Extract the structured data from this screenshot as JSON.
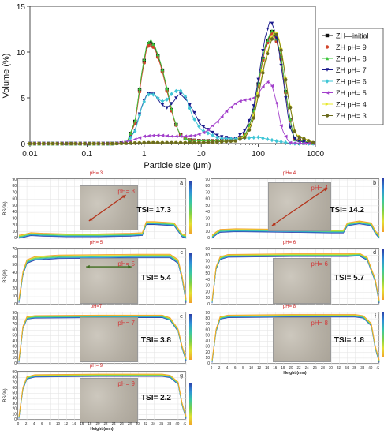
{
  "chart_data": [
    {
      "type": "line",
      "xlabel": "Particle size (μm)",
      "ylabel": "Volume (%)",
      "xscale": "log",
      "xlim": [
        0.01,
        1000
      ],
      "ylim": [
        0,
        15
      ],
      "xticks": [
        "0.01",
        "0.1",
        "1",
        "10",
        "100",
        "1000"
      ],
      "yticks": [
        "0",
        "5",
        "10",
        "15"
      ],
      "legend_position": "right",
      "series": [
        {
          "name": "ZH—initial",
          "color": "#111111",
          "marker": "square",
          "x": [
            0.01,
            0.3,
            0.5,
            0.7,
            0.9,
            1.1,
            1.3,
            1.6,
            2.0,
            2.5,
            3.2,
            4.2,
            6,
            10,
            20,
            40,
            60,
            80,
            100,
            130,
            170,
            200,
            250,
            320,
            420,
            1000
          ],
          "y": [
            0,
            0,
            0.1,
            2.5,
            7.5,
            10.5,
            11.3,
            10.3,
            8.5,
            6.0,
            3.0,
            1.0,
            0.4,
            0.3,
            0.3,
            0.4,
            1.0,
            3.0,
            6.5,
            10.5,
            12.3,
            11.8,
            9.5,
            4.5,
            0.5,
            0
          ]
        },
        {
          "name": "ZH pH= 9",
          "color": "#d2452b",
          "marker": "circle",
          "x": [
            0.01,
            0.3,
            0.5,
            0.7,
            0.9,
            1.1,
            1.3,
            1.6,
            2.0,
            2.5,
            3.2,
            4.2,
            6,
            10,
            20,
            40,
            60,
            80,
            100,
            130,
            170,
            200,
            250,
            320,
            420,
            1000
          ],
          "y": [
            0,
            0,
            0.1,
            2.3,
            7.2,
            10.3,
            11.0,
            10.1,
            8.3,
            5.8,
            2.9,
            1.0,
            0.4,
            0.3,
            0.3,
            0.4,
            1.0,
            2.9,
            6.3,
            10.3,
            12.1,
            11.6,
            9.3,
            4.4,
            0.5,
            0
          ]
        },
        {
          "name": "ZH pH= 8",
          "color": "#3ec63e",
          "marker": "triangle-up",
          "x": [
            0.01,
            0.3,
            0.5,
            0.7,
            0.9,
            1.1,
            1.3,
            1.6,
            2.0,
            2.5,
            3.2,
            4.2,
            6,
            10,
            20,
            40,
            60,
            80,
            100,
            130,
            170,
            200,
            250,
            320,
            420,
            1000
          ],
          "y": [
            0,
            0,
            0.1,
            2.6,
            7.6,
            10.7,
            11.4,
            10.4,
            8.6,
            6.1,
            3.1,
            1.0,
            0.4,
            0.3,
            0.3,
            0.4,
            1.0,
            3.0,
            6.6,
            10.6,
            12.4,
            11.9,
            9.6,
            4.6,
            0.5,
            0
          ]
        },
        {
          "name": "ZH pH= 7",
          "color": "#1a1a8c",
          "marker": "triangle-down",
          "x": [
            0.01,
            0.3,
            0.5,
            0.7,
            0.9,
            1.1,
            1.3,
            1.6,
            2.0,
            2.5,
            3.2,
            4.2,
            6,
            10,
            20,
            40,
            60,
            80,
            100,
            130,
            160,
            180,
            220,
            280,
            350,
            450,
            1000
          ],
          "y": [
            0,
            0,
            0.1,
            1.5,
            4.0,
            5.3,
            5.6,
            5.2,
            4.3,
            3.9,
            4.5,
            5.5,
            4.5,
            2.0,
            0.8,
            0.5,
            1.5,
            3.5,
            7.0,
            11.5,
            13.4,
            13.0,
            11.0,
            6.5,
            2.0,
            0.3,
            0
          ]
        },
        {
          "name": "ZH pH= 6",
          "color": "#3fc6d6",
          "marker": "diamond",
          "x": [
            0.01,
            0.3,
            0.5,
            0.7,
            0.9,
            1.1,
            1.3,
            1.6,
            2.0,
            2.5,
            3.2,
            4.2,
            5.5,
            7,
            10,
            20,
            40,
            60,
            100,
            200,
            400,
            1000
          ],
          "y": [
            0,
            0,
            0.1,
            1.4,
            3.9,
            5.2,
            5.5,
            5.2,
            4.6,
            4.8,
            5.6,
            5.9,
            5.0,
            3.0,
            1.5,
            0.6,
            0.5,
            0.6,
            0.7,
            0.3,
            0,
            0
          ]
        },
        {
          "name": "ZH pH= 5",
          "color": "#a23fcb",
          "marker": "triangle-left",
          "x": [
            0.01,
            0.3,
            0.5,
            0.8,
            1.0,
            1.5,
            2.0,
            3.0,
            5.0,
            8,
            12,
            20,
            30,
            45,
            60,
            80,
            100,
            130,
            150,
            170,
            200,
            260,
            350,
            1000
          ],
          "y": [
            0,
            0,
            0.2,
            0.6,
            0.8,
            0.9,
            0.9,
            0.8,
            0.8,
            0.9,
            1.3,
            2.5,
            3.8,
            4.6,
            4.8,
            4.9,
            5.5,
            6.5,
            6.8,
            6.5,
            5.0,
            1.5,
            0.1,
            0
          ]
        },
        {
          "name": "ZH pH= 4",
          "color": "#e8e82a",
          "marker": "triangle-right",
          "x": [
            0.01,
            0.3,
            1,
            3,
            10,
            20,
            40,
            60,
            80,
            100,
            130,
            160,
            190,
            220,
            260,
            330,
            450,
            1000
          ],
          "y": [
            0,
            0,
            0.1,
            0.1,
            0.1,
            0.2,
            0.3,
            0.8,
            2.5,
            5.5,
            9.0,
            11.0,
            12.3,
            12.0,
            10.0,
            5.5,
            1.0,
            0
          ]
        },
        {
          "name": "ZH pH= 3",
          "color": "#6b6b1e",
          "marker": "circle",
          "x": [
            0.01,
            0.3,
            1,
            3,
            10,
            20,
            40,
            60,
            80,
            100,
            130,
            160,
            190,
            220,
            260,
            330,
            450,
            1000
          ],
          "y": [
            0,
            0,
            0.1,
            0.1,
            0.1,
            0.2,
            0.3,
            0.7,
            2.3,
            5.2,
            8.8,
            10.8,
            12.1,
            11.8,
            9.8,
            5.3,
            0.9,
            0
          ]
        }
      ]
    },
    {
      "type": "line",
      "panel": "a",
      "ph_title": "pH= 3",
      "photo_label": "pH= 3",
      "tsi": "TSI= 17.3",
      "ylabel": "BS(%)",
      "xlabel": "",
      "ylim": [
        0,
        90
      ],
      "xlim": [
        0,
        42
      ],
      "yticks": [
        "0",
        "10",
        "20",
        "30",
        "40",
        "50",
        "60",
        "70",
        "80",
        "90"
      ],
      "xticks": [],
      "profile": [
        [
          0,
          3
        ],
        [
          1,
          4
        ],
        [
          3,
          7
        ],
        [
          6,
          6
        ],
        [
          12,
          5
        ],
        [
          20,
          5
        ],
        [
          28,
          6
        ],
        [
          31,
          7
        ],
        [
          32,
          24
        ],
        [
          34,
          24
        ],
        [
          39,
          22
        ],
        [
          41,
          5
        ],
        [
          42,
          3
        ]
      ]
    },
    {
      "type": "line",
      "panel": "b",
      "ph_title": "pH= 4",
      "photo_label": "pH= 4",
      "tsi": "TSI= 14.2",
      "ylabel": "",
      "xlabel": "",
      "ylim": [
        0,
        90
      ],
      "xlim": [
        0,
        42
      ],
      "yticks": [
        "0",
        "10",
        "20",
        "30",
        "40",
        "50",
        "60",
        "70",
        "80",
        "90"
      ],
      "xticks": [],
      "profile": [
        [
          0,
          3
        ],
        [
          1,
          8
        ],
        [
          2,
          12
        ],
        [
          6,
          13
        ],
        [
          20,
          12
        ],
        [
          30,
          11
        ],
        [
          33,
          11
        ],
        [
          34,
          22
        ],
        [
          37,
          25
        ],
        [
          40,
          22
        ],
        [
          41,
          10
        ],
        [
          42,
          3
        ]
      ]
    },
    {
      "type": "line",
      "panel": "c",
      "ph_title": "pH= 5",
      "photo_label": "pH= 5",
      "tsi": "TSI= 5.4",
      "ylabel": "BS(%)",
      "xlabel": "",
      "ylim": [
        0,
        70
      ],
      "xlim": [
        0,
        42
      ],
      "yticks": [
        "0",
        "10",
        "20",
        "30",
        "40",
        "50",
        "60",
        "70"
      ],
      "xticks": [],
      "profile": [
        [
          0,
          5
        ],
        [
          1,
          40
        ],
        [
          2,
          55
        ],
        [
          4,
          59
        ],
        [
          10,
          61
        ],
        [
          30,
          62
        ],
        [
          38,
          62
        ],
        [
          40,
          55
        ],
        [
          41,
          35
        ],
        [
          42,
          5
        ]
      ]
    },
    {
      "type": "line",
      "panel": "d",
      "ph_title": "pH= 6",
      "photo_label": "pH= 6",
      "tsi": "TSI= 5.7",
      "ylabel": "",
      "xlabel": "",
      "ylim": [
        0,
        90
      ],
      "xlim": [
        0,
        42
      ],
      "yticks": [
        "0",
        "10",
        "20",
        "30",
        "40",
        "50",
        "60",
        "70",
        "80",
        "90"
      ],
      "xticks": [],
      "profile": [
        [
          0,
          5
        ],
        [
          1,
          60
        ],
        [
          2,
          76
        ],
        [
          4,
          80
        ],
        [
          20,
          81
        ],
        [
          34,
          81
        ],
        [
          37,
          82
        ],
        [
          39,
          75
        ],
        [
          41,
          40
        ],
        [
          42,
          5
        ]
      ]
    },
    {
      "type": "line",
      "panel": "e",
      "ph_title": "pH=7",
      "photo_label": "pH= 7",
      "tsi": "TSI= 3.8",
      "ylabel": "",
      "xlabel": "",
      "ylim": [
        0,
        90
      ],
      "xlim": [
        0,
        42
      ],
      "yticks": [
        "0",
        "10",
        "20",
        "30",
        "40",
        "50",
        "60",
        "70",
        "80",
        "90"
      ],
      "xticks": [],
      "profile": [
        [
          0,
          5
        ],
        [
          1,
          65
        ],
        [
          2,
          82
        ],
        [
          4,
          84
        ],
        [
          20,
          85
        ],
        [
          36,
          85
        ],
        [
          38,
          80
        ],
        [
          40,
          60
        ],
        [
          41,
          30
        ],
        [
          42,
          8
        ]
      ]
    },
    {
      "type": "line",
      "panel": "f",
      "ph_title": "pH= 8",
      "photo_label": "pH= 8",
      "tsi": "TSI= 1.8",
      "ylabel": "",
      "xlabel": "Height (mm)",
      "ylim": [
        0,
        90
      ],
      "xlim": [
        0,
        42
      ],
      "yticks": [
        "0",
        "10",
        "20",
        "30",
        "40",
        "50",
        "60",
        "70",
        "80",
        "90"
      ],
      "xticks": [
        "0",
        "2",
        "4",
        "6",
        "8",
        "10",
        "12",
        "14",
        "16",
        "18",
        "20",
        "22",
        "24",
        "26",
        "28",
        "30",
        "32",
        "34",
        "36",
        "38",
        "40",
        "42"
      ],
      "profile": [
        [
          0,
          5
        ],
        [
          1,
          60
        ],
        [
          2,
          82
        ],
        [
          4,
          85
        ],
        [
          20,
          86
        ],
        [
          36,
          86
        ],
        [
          38,
          84
        ],
        [
          40,
          70
        ],
        [
          41,
          30
        ],
        [
          42,
          5
        ]
      ]
    },
    {
      "type": "line",
      "panel": "g",
      "ph_title": "pH= 9",
      "photo_label": "pH= 9",
      "tsi": "TSI= 2.2",
      "ylabel": "BS(%)",
      "xlabel": "Height (mm)",
      "ylim": [
        0,
        90
      ],
      "xlim": [
        0,
        42
      ],
      "yticks": [
        "0",
        "10",
        "20",
        "30",
        "40",
        "50",
        "60",
        "70",
        "80",
        "90"
      ],
      "xticks": [
        "0",
        "2",
        "4",
        "6",
        "8",
        "10",
        "12",
        "14",
        "16",
        "18",
        "20",
        "22",
        "24",
        "26",
        "28",
        "30",
        "32",
        "34",
        "36",
        "38",
        "40",
        "42"
      ],
      "profile": [
        [
          0,
          5
        ],
        [
          1,
          60
        ],
        [
          2,
          80
        ],
        [
          4,
          84
        ],
        [
          20,
          85
        ],
        [
          36,
          85
        ],
        [
          38,
          83
        ],
        [
          40,
          70
        ],
        [
          41,
          30
        ],
        [
          42,
          5
        ]
      ]
    }
  ],
  "colors": {
    "curve_gradient": [
      "#2c3ea8",
      "#2f8fd8",
      "#38c6a6",
      "#7bd148",
      "#e3e032",
      "#f2a12a"
    ],
    "arrow": "#b5341b",
    "tsi_text": "#111111",
    "ph_label": "#cc2222",
    "photo_bg": "#bdb8ad"
  }
}
